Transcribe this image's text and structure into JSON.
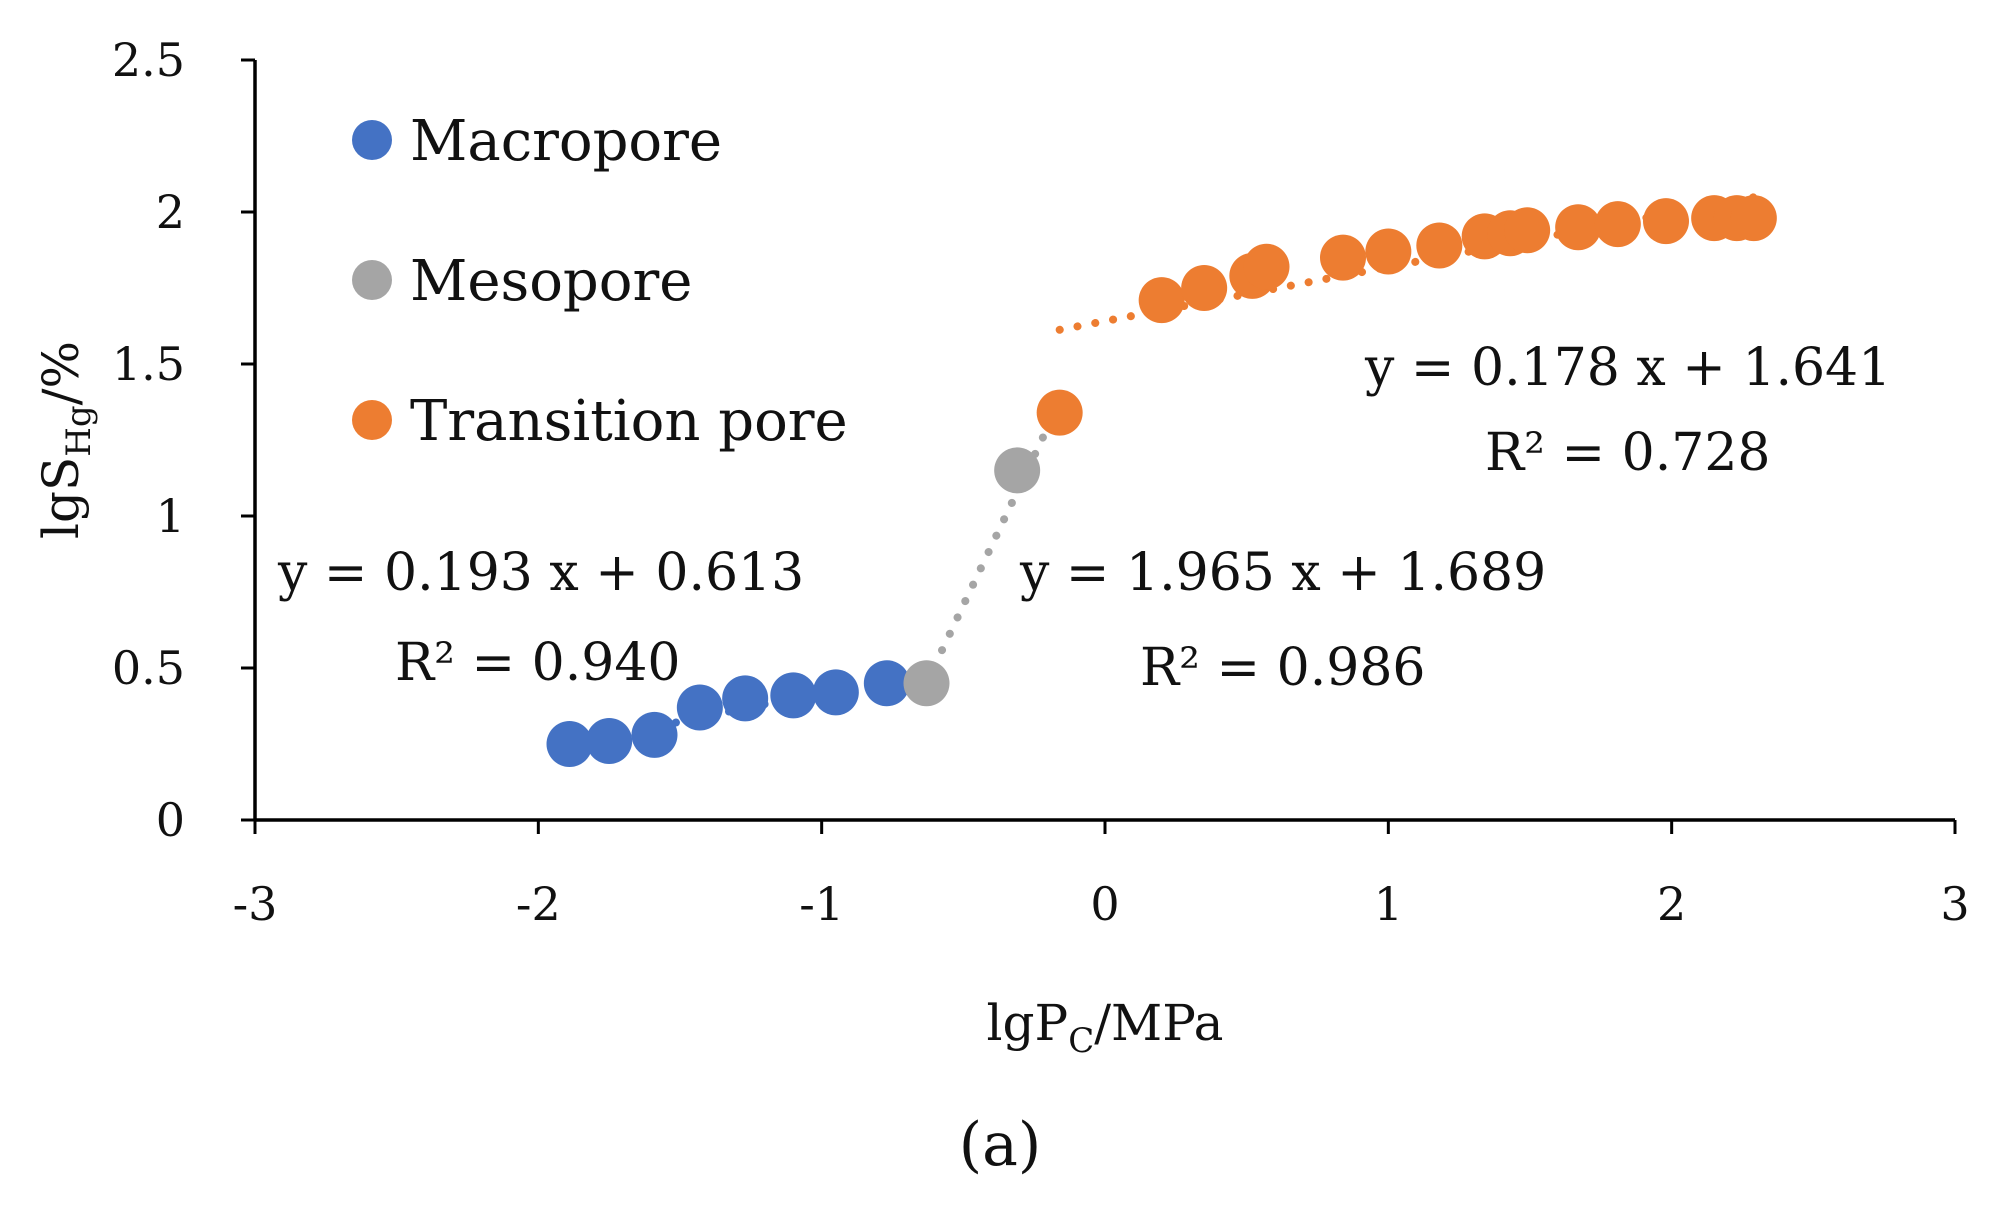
{
  "chart_data": {
    "type": "scatter",
    "title": "",
    "panel_label": "(a)",
    "xlabel": {
      "main": "lgP",
      "sub": "C",
      "tail": "/MPa"
    },
    "ylabel": {
      "main": "lgS",
      "sub": "Hg",
      "tail": "/%"
    },
    "xlim": [
      -3,
      3
    ],
    "ylim": [
      0,
      2.5
    ],
    "x_ticks": [
      "-3",
      "-2",
      "-1",
      "0",
      "1",
      "2",
      "3"
    ],
    "y_ticks": [
      "0",
      "0.5",
      "1",
      "1.5",
      "2",
      "2.5"
    ],
    "grid": false,
    "legend_position": "top-left",
    "series": [
      {
        "name": "Macropore",
        "color": "#4472c4",
        "x": [
          -1.89,
          -1.75,
          -1.59,
          -1.43,
          -1.27,
          -1.1,
          -0.95,
          -0.77
        ],
        "y": [
          0.25,
          0.26,
          0.28,
          0.37,
          0.4,
          0.41,
          0.42,
          0.45
        ],
        "trend": {
          "equation": "y = 0.193 x + 0.613",
          "r2": "R² = 0.940",
          "slope": 0.193,
          "intercept": 0.613,
          "x_range": [
            -1.89,
            -0.77
          ]
        }
      },
      {
        "name": "Mesopore",
        "color": "#a5a5a5",
        "x": [
          -0.63,
          -0.31
        ],
        "y": [
          0.45,
          1.15
        ],
        "trend": {
          "equation": "y = 1.965 x + 1.689",
          "r2": "R² = 0.986",
          "slope": 1.965,
          "intercept": 1.689,
          "x_range": [
            -0.63,
            -0.16
          ]
        }
      },
      {
        "name": "Transition pore",
        "color": "#ed7d31",
        "x": [
          -0.16,
          0.2,
          0.35,
          0.52,
          0.57,
          0.84,
          1.0,
          1.18,
          1.34,
          1.43,
          1.49,
          1.67,
          1.81,
          1.98,
          2.15,
          2.23,
          2.29
        ],
        "y": [
          1.34,
          1.71,
          1.75,
          1.79,
          1.82,
          1.85,
          1.87,
          1.89,
          1.92,
          1.93,
          1.94,
          1.95,
          1.96,
          1.97,
          1.98,
          1.98,
          1.98
        ],
        "trend": {
          "equation": "y = 0.178 x + 1.641",
          "r2": "R² = 0.728",
          "slope": 0.178,
          "intercept": 1.641,
          "x_range": [
            -0.16,
            2.29
          ]
        }
      }
    ]
  }
}
